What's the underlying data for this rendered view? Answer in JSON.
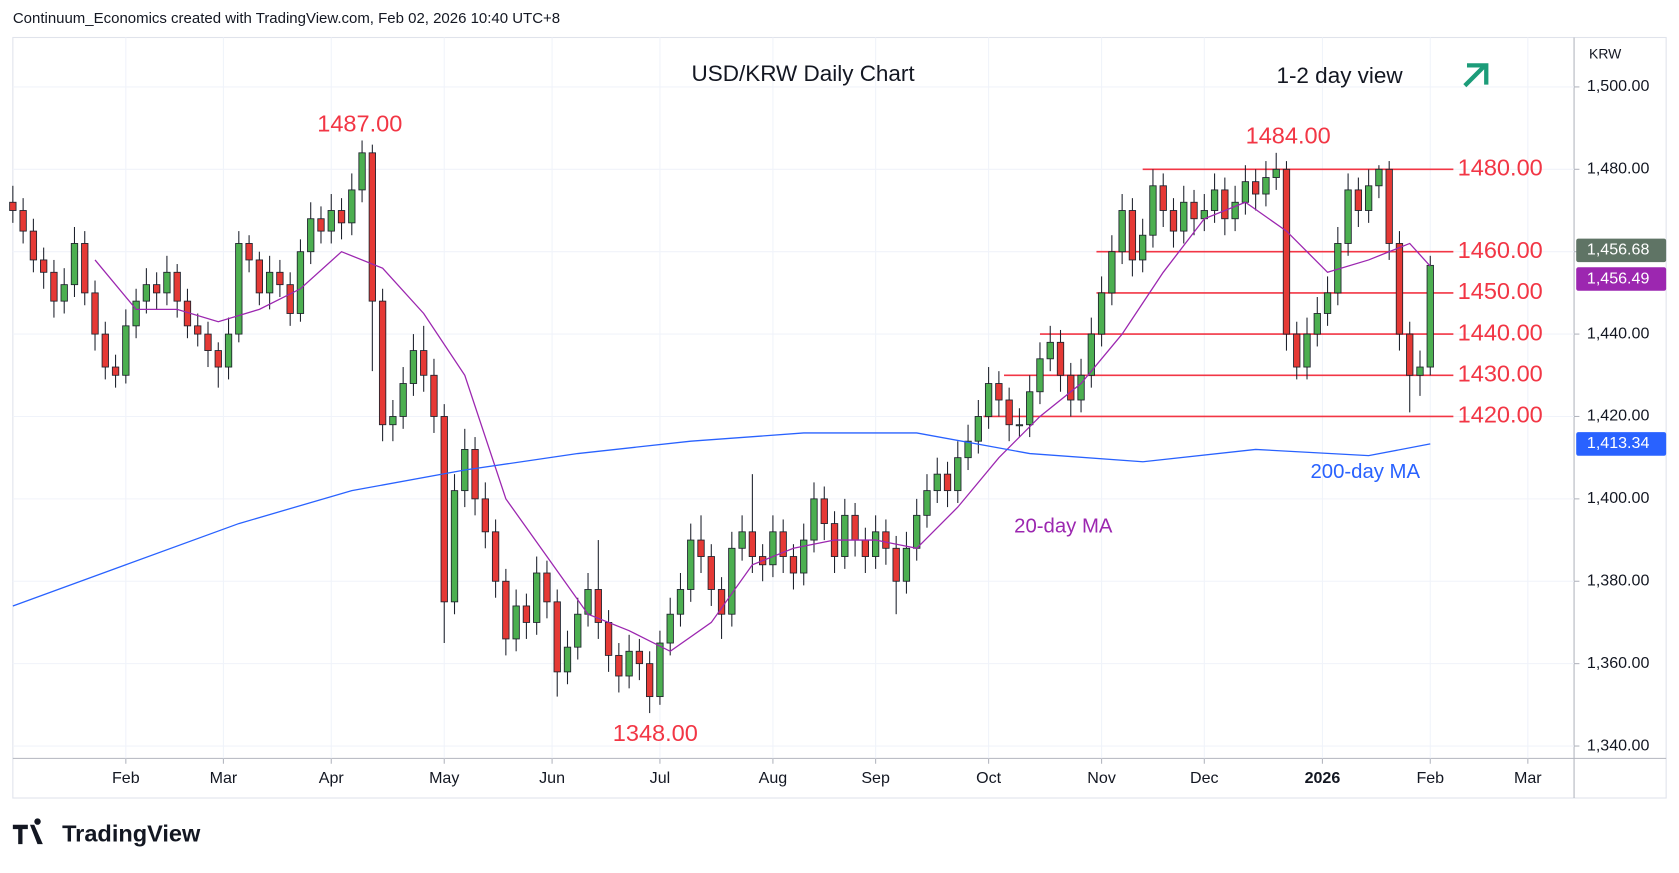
{
  "source": "Continuum_Economics created with TradingView.com, Feb 02, 2026 10:40 UTC+8",
  "brand": "TradingView",
  "chart_data": {
    "type": "candlestick",
    "title": "USD/KRW Daily Chart",
    "subtitle": "1-2 day view",
    "axis_currency": "KRW",
    "annotations": [
      "1487.00",
      "1484.00",
      "1348.00"
    ],
    "ylim": [
      1337,
      1512
    ],
    "xlim": [
      0,
      304
    ],
    "grid": true,
    "yticks": [
      {
        "value": 1340,
        "label": "1,340.00"
      },
      {
        "value": 1360,
        "label": "1,360.00"
      },
      {
        "value": 1380,
        "label": "1,380.00"
      },
      {
        "value": 1400,
        "label": "1,400.00"
      },
      {
        "value": 1420,
        "label": "1,420.00"
      },
      {
        "value": 1440,
        "label": "1,440.00"
      },
      {
        "value": 1460,
        "label": "1,460.00"
      },
      {
        "value": 1480,
        "label": "1,480.00"
      },
      {
        "value": 1500,
        "label": "1,500.00"
      }
    ],
    "xticks": [
      {
        "value": 22,
        "label": "Feb"
      },
      {
        "value": 41,
        "label": "Mar"
      },
      {
        "value": 62,
        "label": "Apr"
      },
      {
        "value": 84,
        "label": "May"
      },
      {
        "value": 105,
        "label": "Jun"
      },
      {
        "value": 126,
        "label": "Jul"
      },
      {
        "value": 148,
        "label": "Aug"
      },
      {
        "value": 168,
        "label": "Sep"
      },
      {
        "value": 190,
        "label": "Oct"
      },
      {
        "value": 212,
        "label": "Nov"
      },
      {
        "value": 232,
        "label": "Dec"
      },
      {
        "value": 255,
        "label": "2026"
      },
      {
        "value": 276,
        "label": "Feb"
      },
      {
        "value": 295,
        "label": "Mar"
      }
    ],
    "levels": [
      {
        "value": 1480,
        "label": "1480.00"
      },
      {
        "value": 1460,
        "label": "1460.00"
      },
      {
        "value": 1450,
        "label": "1450.00"
      },
      {
        "value": 1440,
        "label": "1440.00"
      },
      {
        "value": 1430,
        "label": "1430.00"
      },
      {
        "value": 1420,
        "label": "1420.00"
      }
    ],
    "level_color": "#f23645",
    "series": [
      {
        "up_color": "#4caf50",
        "down_color": "#e53935",
        "label_color": "#5f7465",
        "value_label": "1,456.68",
        "x": [
          0,
          2,
          4,
          6,
          8,
          10,
          12,
          14,
          16,
          18,
          20,
          22,
          24,
          26,
          28,
          30,
          32,
          34,
          36,
          38,
          40,
          42,
          44,
          46,
          48,
          50,
          52,
          54,
          56,
          58,
          60,
          62,
          64,
          66,
          68,
          70,
          72,
          74,
          76,
          78,
          80,
          82,
          84,
          86,
          88,
          90,
          92,
          94,
          96,
          98,
          100,
          102,
          104,
          106,
          108,
          110,
          112,
          114,
          116,
          118,
          120,
          122,
          124,
          126,
          128,
          130,
          132,
          134,
          136,
          138,
          140,
          142,
          144,
          146,
          148,
          150,
          152,
          154,
          156,
          158,
          160,
          162,
          164,
          166,
          168,
          170,
          172,
          174,
          176,
          178,
          180,
          182,
          184,
          186,
          188,
          190,
          192,
          194,
          196,
          198,
          200,
          202,
          204,
          206,
          208,
          210,
          212,
          214,
          216,
          218,
          220,
          222,
          224,
          226,
          228,
          230,
          232,
          234,
          236,
          238,
          240,
          242,
          244,
          246,
          248,
          250,
          252,
          254,
          256,
          258,
          260,
          262,
          264,
          266,
          268,
          270,
          272,
          274,
          276
        ],
        "ohlc": [
          [
            1472,
            1476,
            1467,
            1470
          ],
          [
            1470,
            1473,
            1462,
            1465
          ],
          [
            1465,
            1468,
            1455,
            1458
          ],
          [
            1458,
            1461,
            1451,
            1455
          ],
          [
            1455,
            1458,
            1444,
            1448
          ],
          [
            1448,
            1456,
            1445,
            1452
          ],
          [
            1452,
            1466,
            1449,
            1462
          ],
          [
            1462,
            1465,
            1447,
            1450
          ],
          [
            1450,
            1453,
            1436,
            1440
          ],
          [
            1440,
            1443,
            1429,
            1432
          ],
          [
            1432,
            1435,
            1427,
            1430
          ],
          [
            1430,
            1446,
            1428,
            1442
          ],
          [
            1442,
            1451,
            1439,
            1448
          ],
          [
            1448,
            1456,
            1445,
            1452
          ],
          [
            1452,
            1455,
            1446,
            1450
          ],
          [
            1450,
            1459,
            1447,
            1455
          ],
          [
            1455,
            1457,
            1444,
            1448
          ],
          [
            1448,
            1451,
            1439,
            1442
          ],
          [
            1442,
            1445,
            1437,
            1440
          ],
          [
            1440,
            1443,
            1432,
            1436
          ],
          [
            1436,
            1438,
            1427,
            1432
          ],
          [
            1432,
            1444,
            1429,
            1440
          ],
          [
            1440,
            1465,
            1438,
            1462
          ],
          [
            1462,
            1464,
            1455,
            1458
          ],
          [
            1458,
            1460,
            1447,
            1450
          ],
          [
            1450,
            1459,
            1446,
            1455
          ],
          [
            1455,
            1458,
            1449,
            1452
          ],
          [
            1452,
            1455,
            1442,
            1445
          ],
          [
            1445,
            1463,
            1443,
            1460
          ],
          [
            1460,
            1472,
            1457,
            1468
          ],
          [
            1468,
            1471,
            1462,
            1465
          ],
          [
            1465,
            1474,
            1462,
            1470
          ],
          [
            1470,
            1473,
            1463,
            1467
          ],
          [
            1467,
            1479,
            1464,
            1475
          ],
          [
            1475,
            1487,
            1472,
            1484
          ],
          [
            1484,
            1486,
            1431,
            1448
          ],
          [
            1448,
            1451,
            1414,
            1418
          ],
          [
            1418,
            1424,
            1414,
            1420
          ],
          [
            1420,
            1432,
            1417,
            1428
          ],
          [
            1428,
            1440,
            1425,
            1436
          ],
          [
            1436,
            1442,
            1426,
            1430
          ],
          [
            1430,
            1434,
            1416,
            1420
          ],
          [
            1420,
            1423,
            1365,
            1375
          ],
          [
            1375,
            1406,
            1372,
            1402
          ],
          [
            1402,
            1417,
            1398,
            1412
          ],
          [
            1412,
            1415,
            1396,
            1400
          ],
          [
            1400,
            1404,
            1388,
            1392
          ],
          [
            1392,
            1395,
            1376,
            1380
          ],
          [
            1380,
            1383,
            1362,
            1366
          ],
          [
            1366,
            1378,
            1363,
            1374
          ],
          [
            1374,
            1377,
            1366,
            1370
          ],
          [
            1370,
            1386,
            1367,
            1382
          ],
          [
            1382,
            1385,
            1371,
            1375
          ],
          [
            1375,
            1378,
            1352,
            1358
          ],
          [
            1358,
            1368,
            1355,
            1364
          ],
          [
            1364,
            1376,
            1361,
            1372
          ],
          [
            1372,
            1382,
            1369,
            1378
          ],
          [
            1378,
            1390,
            1366,
            1370
          ],
          [
            1370,
            1373,
            1358,
            1362
          ],
          [
            1362,
            1365,
            1353,
            1357
          ],
          [
            1357,
            1367,
            1354,
            1363
          ],
          [
            1363,
            1366,
            1356,
            1360
          ],
          [
            1360,
            1363,
            1348,
            1352
          ],
          [
            1352,
            1368,
            1350,
            1365
          ],
          [
            1365,
            1376,
            1362,
            1372
          ],
          [
            1372,
            1382,
            1369,
            1378
          ],
          [
            1378,
            1394,
            1375,
            1390
          ],
          [
            1390,
            1396,
            1382,
            1386
          ],
          [
            1386,
            1389,
            1374,
            1378
          ],
          [
            1378,
            1381,
            1366,
            1372
          ],
          [
            1372,
            1392,
            1369,
            1388
          ],
          [
            1388,
            1396,
            1385,
            1392
          ],
          [
            1392,
            1406,
            1382,
            1386
          ],
          [
            1386,
            1389,
            1380,
            1384
          ],
          [
            1384,
            1396,
            1381,
            1392
          ],
          [
            1392,
            1395,
            1382,
            1386
          ],
          [
            1386,
            1389,
            1378,
            1382
          ],
          [
            1382,
            1394,
            1379,
            1390
          ],
          [
            1390,
            1404,
            1387,
            1400
          ],
          [
            1400,
            1403,
            1390,
            1394
          ],
          [
            1394,
            1397,
            1382,
            1386
          ],
          [
            1386,
            1400,
            1383,
            1396
          ],
          [
            1396,
            1399,
            1386,
            1390
          ],
          [
            1390,
            1393,
            1382,
            1386
          ],
          [
            1386,
            1396,
            1383,
            1392
          ],
          [
            1392,
            1395,
            1384,
            1388
          ],
          [
            1388,
            1391,
            1372,
            1380
          ],
          [
            1380,
            1392,
            1377,
            1388
          ],
          [
            1388,
            1400,
            1385,
            1396
          ],
          [
            1396,
            1406,
            1393,
            1402
          ],
          [
            1402,
            1410,
            1399,
            1406
          ],
          [
            1406,
            1409,
            1398,
            1402
          ],
          [
            1402,
            1414,
            1399,
            1410
          ],
          [
            1410,
            1418,
            1407,
            1414
          ],
          [
            1414,
            1424,
            1411,
            1420
          ],
          [
            1420,
            1432,
            1417,
            1428
          ],
          [
            1428,
            1431,
            1420,
            1424
          ],
          [
            1424,
            1427,
            1414,
            1418
          ],
          [
            1418,
            1422,
            1415,
            1418
          ],
          [
            1418,
            1430,
            1415,
            1426
          ],
          [
            1426,
            1438,
            1423,
            1434
          ],
          [
            1434,
            1442,
            1431,
            1438
          ],
          [
            1438,
            1441,
            1426,
            1430
          ],
          [
            1430,
            1433,
            1420,
            1424
          ],
          [
            1424,
            1434,
            1421,
            1430
          ],
          [
            1430,
            1444,
            1427,
            1440
          ],
          [
            1440,
            1454,
            1437,
            1450
          ],
          [
            1450,
            1464,
            1447,
            1460
          ],
          [
            1460,
            1474,
            1457,
            1470
          ],
          [
            1470,
            1473,
            1454,
            1458
          ],
          [
            1458,
            1468,
            1455,
            1464
          ],
          [
            1464,
            1480,
            1461,
            1476
          ],
          [
            1476,
            1479,
            1466,
            1470
          ],
          [
            1470,
            1473,
            1461,
            1465
          ],
          [
            1465,
            1476,
            1462,
            1472
          ],
          [
            1472,
            1475,
            1464,
            1468
          ],
          [
            1468,
            1474,
            1465,
            1470
          ],
          [
            1470,
            1479,
            1467,
            1475
          ],
          [
            1475,
            1478,
            1464,
            1468
          ],
          [
            1468,
            1476,
            1465,
            1472
          ],
          [
            1472,
            1481,
            1469,
            1477
          ],
          [
            1477,
            1480,
            1470,
            1474
          ],
          [
            1474,
            1482,
            1471,
            1478
          ],
          [
            1478,
            1484,
            1475,
            1480
          ],
          [
            1480,
            1482,
            1436,
            1440
          ],
          [
            1440,
            1443,
            1429,
            1432
          ],
          [
            1432,
            1444,
            1429,
            1440
          ],
          [
            1440,
            1449,
            1437,
            1445
          ],
          [
            1445,
            1454,
            1442,
            1450
          ],
          [
            1450,
            1466,
            1447,
            1462
          ],
          [
            1462,
            1479,
            1459,
            1475
          ],
          [
            1475,
            1478,
            1466,
            1470
          ],
          [
            1470,
            1480,
            1467,
            1476
          ],
          [
            1476,
            1481,
            1473,
            1480
          ],
          [
            1480,
            1482,
            1458,
            1462
          ],
          [
            1462,
            1465,
            1436,
            1440
          ],
          [
            1440,
            1443,
            1421,
            1430
          ],
          [
            1430,
            1436,
            1425,
            1432
          ],
          [
            1432,
            1459,
            1430,
            1456.68
          ]
        ]
      },
      {
        "name": "20-day MA",
        "color": "#9c27b0",
        "value_label": "1,456.49",
        "x": [
          16,
          24,
          32,
          40,
          48,
          56,
          64,
          72,
          80,
          88,
          96,
          104,
          112,
          120,
          128,
          136,
          144,
          152,
          160,
          168,
          176,
          184,
          192,
          200,
          208,
          216,
          224,
          232,
          240,
          248,
          256,
          264,
          272,
          276
        ],
        "values": [
          1458,
          1446,
          1446,
          1443,
          1446,
          1451,
          1460,
          1456,
          1445,
          1430,
          1400,
          1386,
          1372,
          1368,
          1363,
          1370,
          1384,
          1388,
          1390,
          1390,
          1388,
          1398,
          1410,
          1420,
          1428,
          1440,
          1455,
          1468,
          1472,
          1465,
          1455,
          1458,
          1462,
          1456.49
        ]
      },
      {
        "name": "200-day MA",
        "color": "#2962ff",
        "value_label": "1,413.34",
        "x": [
          0,
          22,
          44,
          66,
          88,
          110,
          132,
          154,
          176,
          198,
          220,
          242,
          264,
          276
        ],
        "values": [
          1374,
          1384,
          1394,
          1402,
          1407,
          1411,
          1414,
          1416,
          1416,
          1411,
          1409,
          1412,
          1410.5,
          1413.34
        ]
      }
    ]
  }
}
